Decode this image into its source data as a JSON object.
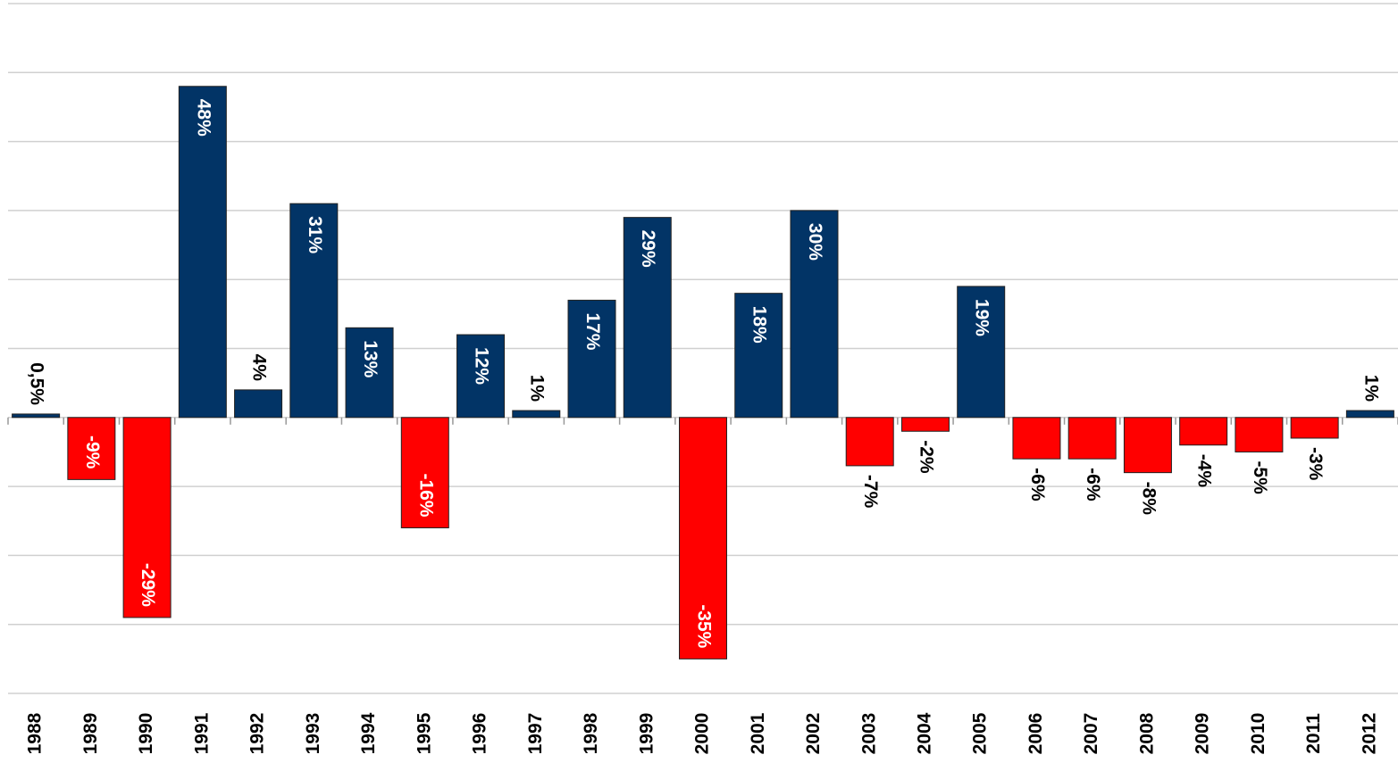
{
  "chart_data": {
    "type": "bar",
    "categories": [
      "1988",
      "1989",
      "1990",
      "1991",
      "1992",
      "1993",
      "1994",
      "1995",
      "1996",
      "1997",
      "1998",
      "1999",
      "2000",
      "2001",
      "2002",
      "2003",
      "2004",
      "2005",
      "2006",
      "2007",
      "2008",
      "2009",
      "2010",
      "2011",
      "2012"
    ],
    "values": [
      0.5,
      -9,
      -29,
      48,
      4,
      31,
      13,
      -16,
      12,
      1,
      17,
      29,
      -35,
      18,
      30,
      -7,
      -2,
      19,
      -6,
      -6,
      -8,
      -4,
      -5,
      -3,
      1
    ],
    "value_labels": [
      "0,5%",
      "-9%",
      "-29%",
      "48%",
      "4%",
      "31%",
      "13%",
      "-16%",
      "12%",
      "1%",
      "17%",
      "29%",
      "-35%",
      "18%",
      "30%",
      "-7%",
      "-2%",
      "19%",
      "-6%",
      "-6%",
      "-8%",
      "-4%",
      "-5%",
      "-3%",
      "1%"
    ],
    "positive_color": "#023466",
    "negative_color": "#ff0000",
    "ylim": [
      -40,
      60
    ],
    "yticks": [
      -40,
      -30,
      -20,
      -10,
      0,
      10,
      20,
      30,
      40,
      50,
      60
    ],
    "grid": true
  }
}
